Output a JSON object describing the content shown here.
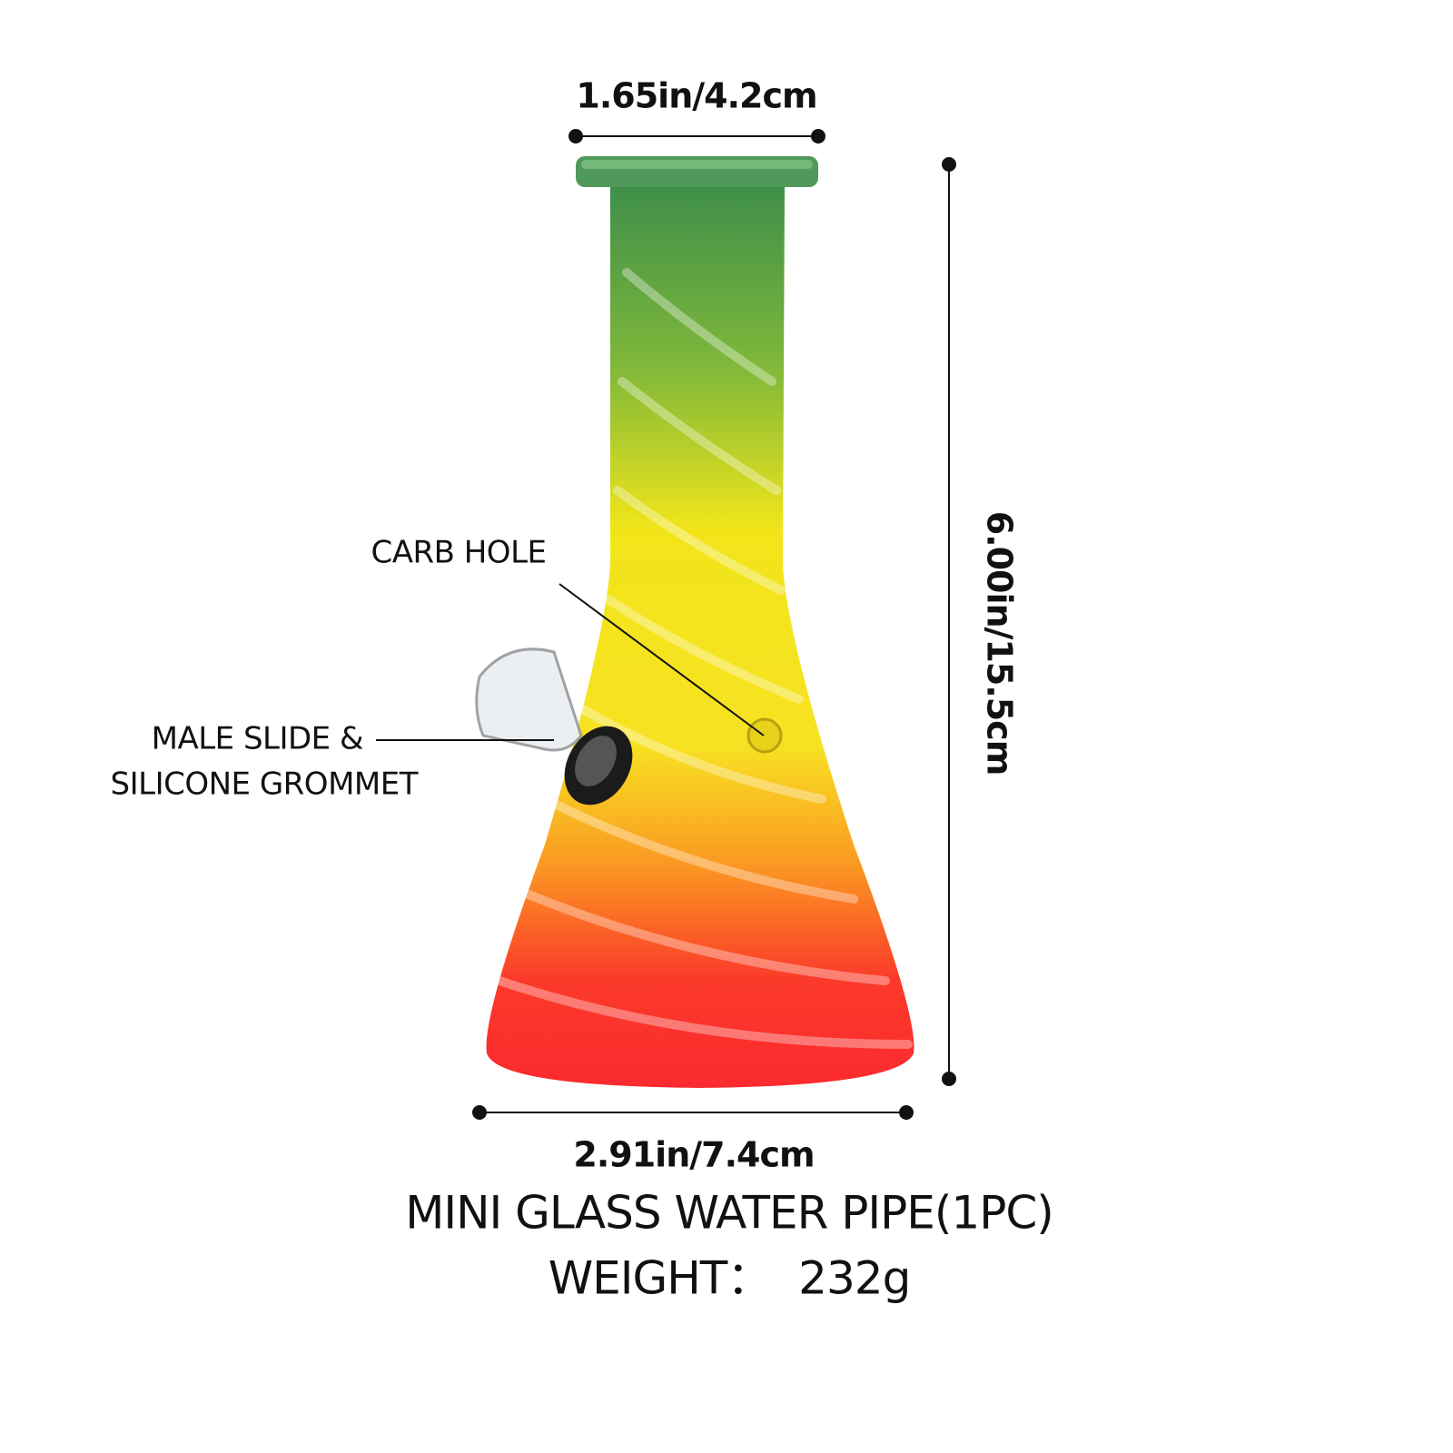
{
  "dimensions": {
    "top_width": "1.65in/4.2cm",
    "height": "6.00in/15.5cm",
    "base_width": "2.91in/7.4cm"
  },
  "callouts": {
    "carb_hole": "CARB HOLE",
    "slide_line1": "MALE SLIDE &",
    "slide_line2": "SILICONE GROMMET"
  },
  "product": {
    "name": "MINI GLASS WATER PIPE(1PC)",
    "weight": "WEIGHT：  232g"
  }
}
